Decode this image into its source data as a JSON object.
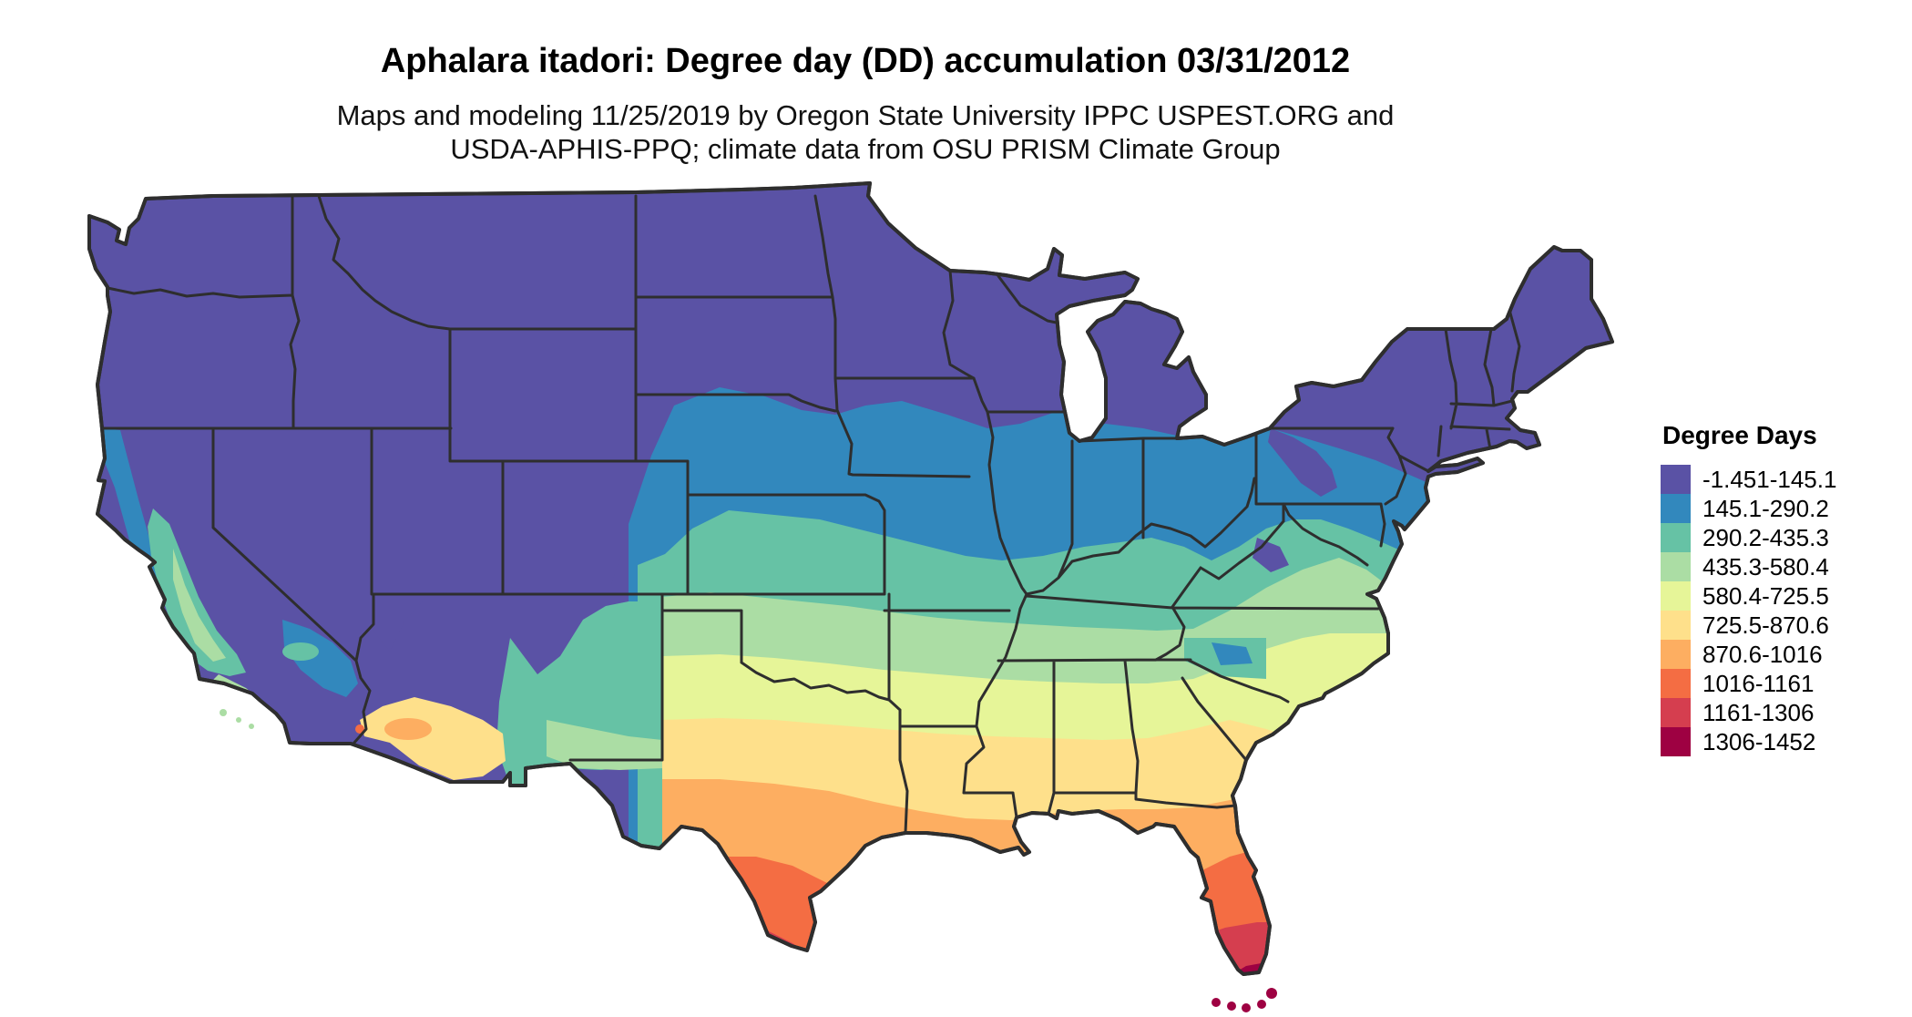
{
  "title": "Aphalara itadori: Degree day (DD) accumulation 03/31/2012",
  "subtitle_line1": "Maps and modeling 11/25/2019 by Oregon State University IPPC USPEST.ORG and",
  "subtitle_line2": "USDA-APHIS-PPQ; climate data from OSU PRISM Climate Group",
  "legend": {
    "title": "Degree Days",
    "entries": [
      {
        "label": "-1.451-145.1",
        "color": "#5a52a5"
      },
      {
        "label": "145.1-290.2",
        "color": "#3288bd"
      },
      {
        "label": "290.2-435.3",
        "color": "#66c2a5"
      },
      {
        "label": "435.3-580.4",
        "color": "#abdda4"
      },
      {
        "label": "580.4-725.5",
        "color": "#e6f598"
      },
      {
        "label": "725.5-870.6",
        "color": "#fee08b"
      },
      {
        "label": "870.6-1016",
        "color": "#fdae61"
      },
      {
        "label": "1016-1161",
        "color": "#f46d43"
      },
      {
        "label": "1161-1306",
        "color": "#d53e4f"
      },
      {
        "label": "1306-1452",
        "color": "#9e0142"
      }
    ]
  },
  "map": {
    "region": "Continental United States",
    "border_color": "#2e2e2e",
    "background_color": "#ffffff"
  }
}
